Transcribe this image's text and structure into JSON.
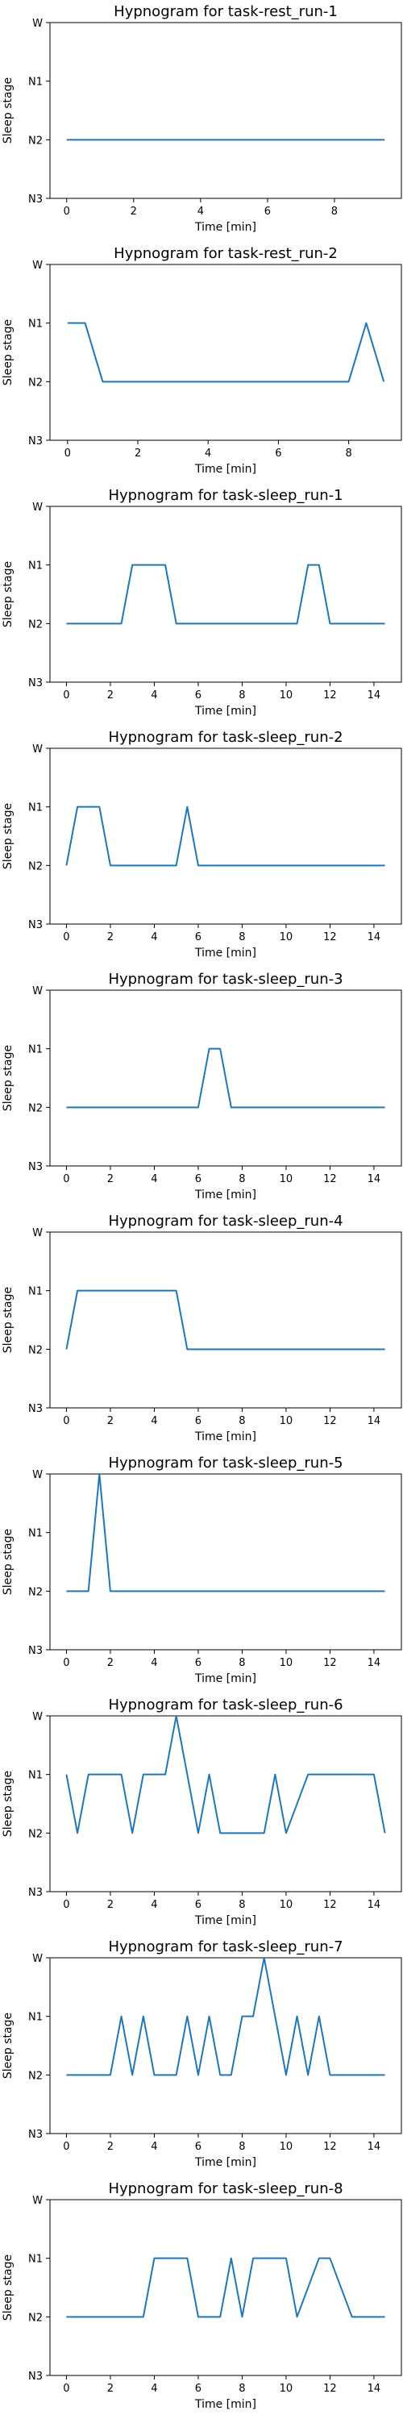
{
  "chart_data": [
    {
      "type": "line",
      "title": "Hypnogram for task-rest_run-1",
      "xlabel": "Time [min]",
      "ylabel": "Sleep stage",
      "stages": [
        "W",
        "N1",
        "N2",
        "N3"
      ],
      "xticks": [
        0,
        2,
        4,
        6,
        8
      ],
      "xlim": [
        -0.5,
        10
      ],
      "series": [
        {
          "x": [
            0,
            9.5
          ],
          "y": [
            "N2",
            "N2"
          ]
        }
      ]
    },
    {
      "type": "line",
      "title": "Hypnogram for task-rest_run-2",
      "xlabel": "Time [min]",
      "ylabel": "Sleep stage",
      "stages": [
        "W",
        "N1",
        "N2",
        "N3"
      ],
      "xticks": [
        0,
        2,
        4,
        6,
        8
      ],
      "xlim": [
        -0.5,
        9.5
      ],
      "series": [
        {
          "x": [
            0,
            0.5,
            1,
            8,
            8.5,
            9
          ],
          "y": [
            "N1",
            "N1",
            "N2",
            "N2",
            "N1",
            "N2"
          ]
        }
      ]
    },
    {
      "type": "line",
      "title": "Hypnogram for task-sleep_run-1",
      "xlabel": "Time [min]",
      "ylabel": "Sleep stage",
      "stages": [
        "W",
        "N1",
        "N2",
        "N3"
      ],
      "xticks": [
        0,
        2,
        4,
        6,
        8,
        10,
        12,
        14
      ],
      "xlim": [
        -0.75,
        15.25
      ],
      "series": [
        {
          "x": [
            0,
            2.5,
            3,
            4.5,
            5,
            10.5,
            11,
            11.5,
            12,
            14.5
          ],
          "y": [
            "N2",
            "N2",
            "N1",
            "N1",
            "N2",
            "N2",
            "N1",
            "N1",
            "N2",
            "N2"
          ]
        }
      ]
    },
    {
      "type": "line",
      "title": "Hypnogram for task-sleep_run-2",
      "xlabel": "Time [min]",
      "ylabel": "Sleep stage",
      "stages": [
        "W",
        "N1",
        "N2",
        "N3"
      ],
      "xticks": [
        0,
        2,
        4,
        6,
        8,
        10,
        12,
        14
      ],
      "xlim": [
        -0.75,
        15.25
      ],
      "series": [
        {
          "x": [
            0,
            0.5,
            1.5,
            2,
            5,
            5.5,
            6,
            14.5
          ],
          "y": [
            "N2",
            "N1",
            "N1",
            "N2",
            "N2",
            "N1",
            "N2",
            "N2"
          ]
        }
      ]
    },
    {
      "type": "line",
      "title": "Hypnogram for task-sleep_run-3",
      "xlabel": "Time [min]",
      "ylabel": "Sleep stage",
      "stages": [
        "W",
        "N1",
        "N2",
        "N3"
      ],
      "xticks": [
        0,
        2,
        4,
        6,
        8,
        10,
        12,
        14
      ],
      "xlim": [
        -0.75,
        15.25
      ],
      "series": [
        {
          "x": [
            0,
            6,
            6.5,
            7,
            7.5,
            14.5
          ],
          "y": [
            "N2",
            "N2",
            "N1",
            "N1",
            "N2",
            "N2"
          ]
        }
      ]
    },
    {
      "type": "line",
      "title": "Hypnogram for task-sleep_run-4",
      "xlabel": "Time [min]",
      "ylabel": "Sleep stage",
      "stages": [
        "W",
        "N1",
        "N2",
        "N3"
      ],
      "xticks": [
        0,
        2,
        4,
        6,
        8,
        10,
        12,
        14
      ],
      "xlim": [
        -0.75,
        15.25
      ],
      "series": [
        {
          "x": [
            0,
            0.5,
            5,
            5.5,
            14.5
          ],
          "y": [
            "N2",
            "N1",
            "N1",
            "N2",
            "N2"
          ]
        }
      ]
    },
    {
      "type": "line",
      "title": "Hypnogram for task-sleep_run-5",
      "xlabel": "Time [min]",
      "ylabel": "Sleep stage",
      "stages": [
        "W",
        "N1",
        "N2",
        "N3"
      ],
      "xticks": [
        0,
        2,
        4,
        6,
        8,
        10,
        12,
        14
      ],
      "xlim": [
        -0.75,
        15.25
      ],
      "series": [
        {
          "x": [
            0,
            1,
            1.5,
            2,
            14.5
          ],
          "y": [
            "N2",
            "N2",
            "W",
            "N2",
            "N2"
          ]
        }
      ]
    },
    {
      "type": "line",
      "title": "Hypnogram for task-sleep_run-6",
      "xlabel": "Time [min]",
      "ylabel": "Sleep stage",
      "stages": [
        "W",
        "N1",
        "N2",
        "N3"
      ],
      "xticks": [
        0,
        2,
        4,
        6,
        8,
        10,
        12,
        14
      ],
      "xlim": [
        -0.75,
        15.25
      ],
      "series": [
        {
          "x": [
            0,
            0.5,
            1,
            2.5,
            3,
            3.5,
            4.5,
            5,
            6,
            6.5,
            7,
            9,
            9.5,
            10,
            11,
            14,
            14.5
          ],
          "y": [
            "N1",
            "N2",
            "N1",
            "N1",
            "N2",
            "N1",
            "N1",
            "W",
            "N2",
            "N1",
            "N2",
            "N2",
            "N1",
            "N2",
            "N1",
            "N1",
            "N2"
          ]
        }
      ]
    },
    {
      "type": "line",
      "title": "Hypnogram for task-sleep_run-7",
      "xlabel": "Time [min]",
      "ylabel": "Sleep stage",
      "stages": [
        "W",
        "N1",
        "N2",
        "N3"
      ],
      "xticks": [
        0,
        2,
        4,
        6,
        8,
        10,
        12,
        14
      ],
      "xlim": [
        -0.75,
        15.25
      ],
      "series": [
        {
          "x": [
            0,
            2,
            2.5,
            3,
            3.5,
            4,
            5,
            5.5,
            6,
            6.5,
            7,
            7.5,
            8,
            8.5,
            9,
            10,
            10.5,
            11,
            11.5,
            12,
            14.5
          ],
          "y": [
            "N2",
            "N2",
            "N1",
            "N2",
            "N1",
            "N2",
            "N2",
            "N1",
            "N2",
            "N1",
            "N2",
            "N2",
            "N1",
            "N1",
            "W",
            "N2",
            "N1",
            "N2",
            "N1",
            "N2",
            "N2"
          ]
        }
      ]
    },
    {
      "type": "line",
      "title": "Hypnogram for task-sleep_run-8",
      "xlabel": "Time [min]",
      "ylabel": "Sleep stage",
      "stages": [
        "W",
        "N1",
        "N2",
        "N3"
      ],
      "xticks": [
        0,
        2,
        4,
        6,
        8,
        10,
        12,
        14
      ],
      "xlim": [
        -0.75,
        15.25
      ],
      "series": [
        {
          "x": [
            0,
            3.5,
            4,
            5.5,
            6,
            7,
            7.5,
            8,
            8.5,
            10,
            10.5,
            11.5,
            12,
            13,
            13.5,
            14.5
          ],
          "y": [
            "N2",
            "N2",
            "N1",
            "N1",
            "N2",
            "N2",
            "N1",
            "N2",
            "N1",
            "N1",
            "N2",
            "N1",
            "N1",
            "N2",
            "N2",
            "N2"
          ]
        }
      ]
    }
  ]
}
